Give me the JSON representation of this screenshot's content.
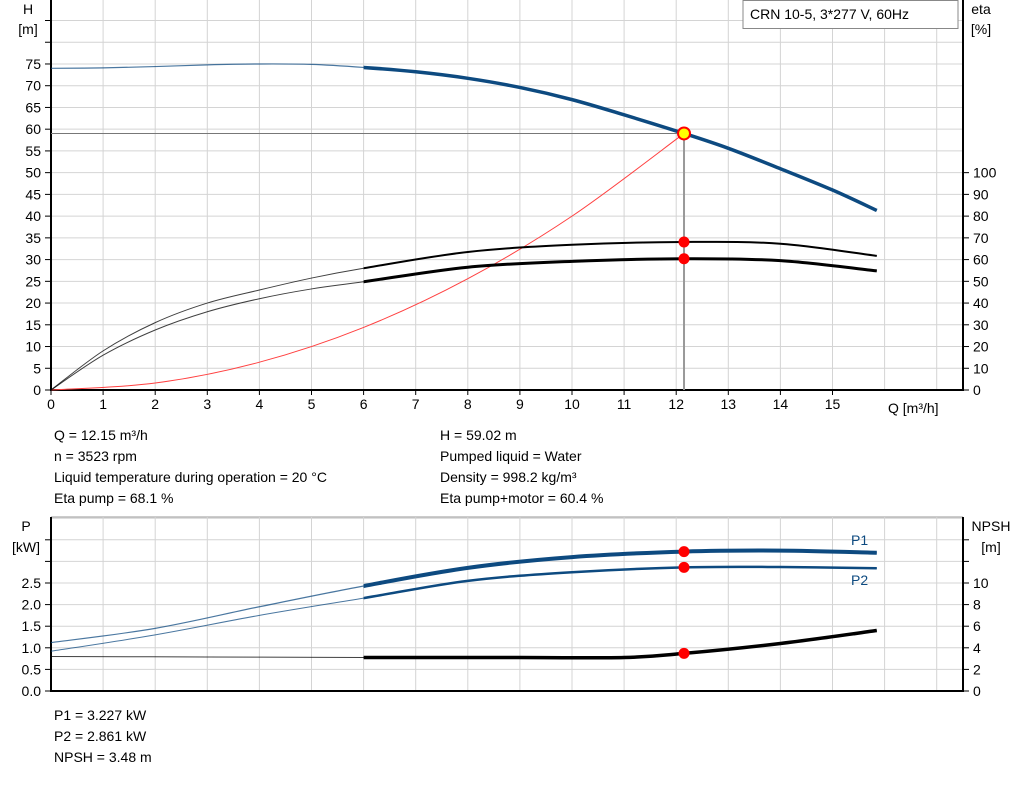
{
  "chart_data": [
    {
      "type": "line",
      "title": "CRN 10-5, 3*277 V, 60Hz",
      "xlabel": "Q [m³/h]",
      "ylabel": "H\n[m]",
      "ylabel_top": "H",
      "ylabel_unit": "[m]",
      "y2label_top": "eta",
      "y2label_unit": "[%]",
      "xlim": [
        0,
        17.5
      ],
      "ylim": [
        0,
        90
      ],
      "y2lim": [
        0,
        180
      ],
      "xticks": [
        0,
        1,
        2,
        3,
        4,
        5,
        6,
        7,
        8,
        9,
        10,
        11,
        12,
        13,
        14,
        15
      ],
      "yticks": [
        0,
        5,
        10,
        15,
        20,
        25,
        30,
        35,
        40,
        45,
        50,
        55,
        60,
        65,
        70,
        75
      ],
      "y2ticks": [
        0,
        10,
        20,
        30,
        40,
        50,
        60,
        70,
        80,
        90,
        100
      ],
      "grid": true,
      "colors": {
        "head": "#0d4a80",
        "eta": "#000000",
        "system": "#ff4040",
        "duty_point": "#ffff00",
        "marker": "#ff0000"
      },
      "series": [
        {
          "key": "H",
          "axis": "left",
          "x": [
            0,
            1,
            2,
            3,
            4,
            5,
            6,
            7,
            8,
            9,
            10,
            11,
            12.15,
            13,
            14,
            15,
            15.85
          ],
          "y": [
            74,
            74.1,
            74.4,
            74.8,
            75,
            74.9,
            74.2,
            73.2,
            71.7,
            69.6,
            66.8,
            63.3,
            59.02,
            55.6,
            50.9,
            46,
            41.3
          ]
        },
        {
          "key": "eta_pump",
          "axis": "right",
          "x": [
            0,
            1,
            2,
            3,
            4,
            5,
            6,
            8,
            10,
            12.15,
            14,
            15.85
          ],
          "y": [
            0,
            18,
            31,
            40,
            46,
            51.5,
            56,
            63.5,
            66.8,
            68.1,
            67.3,
            61.7
          ]
        },
        {
          "key": "eta_pump_motor",
          "axis": "right",
          "x": [
            0,
            1,
            2,
            3,
            4,
            5,
            6,
            8,
            10,
            12.15,
            14,
            15.85
          ],
          "y": [
            0,
            16,
            27.6,
            36,
            42,
            46.5,
            49.8,
            56.5,
            59.2,
            60.4,
            59.5,
            54.8
          ]
        },
        {
          "key": "system_curve",
          "axis": "left",
          "x": [
            0,
            2,
            4,
            6,
            8,
            10,
            12.15
          ],
          "y": [
            0,
            1.6,
            6.4,
            14.4,
            25.6,
            40,
            59.02
          ]
        }
      ],
      "duty_point": {
        "Q": 12.15,
        "H": 59.02,
        "eta_pump": 68.1,
        "eta_pump_motor": 60.4
      }
    },
    {
      "type": "line",
      "ylabel_top": "P",
      "ylabel_unit": "[kW]",
      "y2label_top": "NPSH",
      "y2label_unit": "[m]",
      "xlim": [
        0,
        17.5
      ],
      "ylim": [
        0,
        4
      ],
      "y2lim": [
        0,
        16
      ],
      "yticks": [
        "0.0",
        "0.5",
        "1.0",
        "1.5",
        "2.0",
        "2.5"
      ],
      "y2ticks": [
        0,
        2,
        4,
        6,
        8,
        10
      ],
      "grid": true,
      "series": [
        {
          "name": "P1",
          "axis": "left",
          "x": [
            0,
            2,
            4,
            6,
            8,
            10,
            12.15,
            14,
            15.85
          ],
          "y": [
            1.12,
            1.45,
            1.95,
            2.43,
            2.85,
            3.1,
            3.227,
            3.25,
            3.2
          ]
        },
        {
          "name": "P2",
          "axis": "left",
          "x": [
            0,
            2,
            4,
            6,
            8,
            10,
            12.15,
            14,
            15.85
          ],
          "y": [
            0.92,
            1.3,
            1.75,
            2.15,
            2.55,
            2.75,
            2.861,
            2.87,
            2.84
          ]
        },
        {
          "key": "NPSH",
          "axis": "right",
          "x": [
            0,
            3,
            6,
            9,
            11,
            12.15,
            14,
            15.85
          ],
          "y": [
            3.2,
            3.15,
            3.1,
            3.1,
            3.1,
            3.48,
            4.4,
            5.6
          ]
        }
      ]
    }
  ],
  "info_left": [
    "Q = 12.15 m³/h",
    "n = 3523 rpm",
    "Liquid temperature during operation = 20 °C",
    "Eta pump = 68.1 %"
  ],
  "info_right": [
    "H = 59.02 m",
    "Pumped liquid = Water",
    "Density = 998.2 kg/m³",
    "Eta pump+motor = 60.4 %"
  ],
  "info_power": [
    "P1 = 3.227 kW",
    "P2 = 2.861 kW",
    "NPSH = 3.48 m"
  ]
}
